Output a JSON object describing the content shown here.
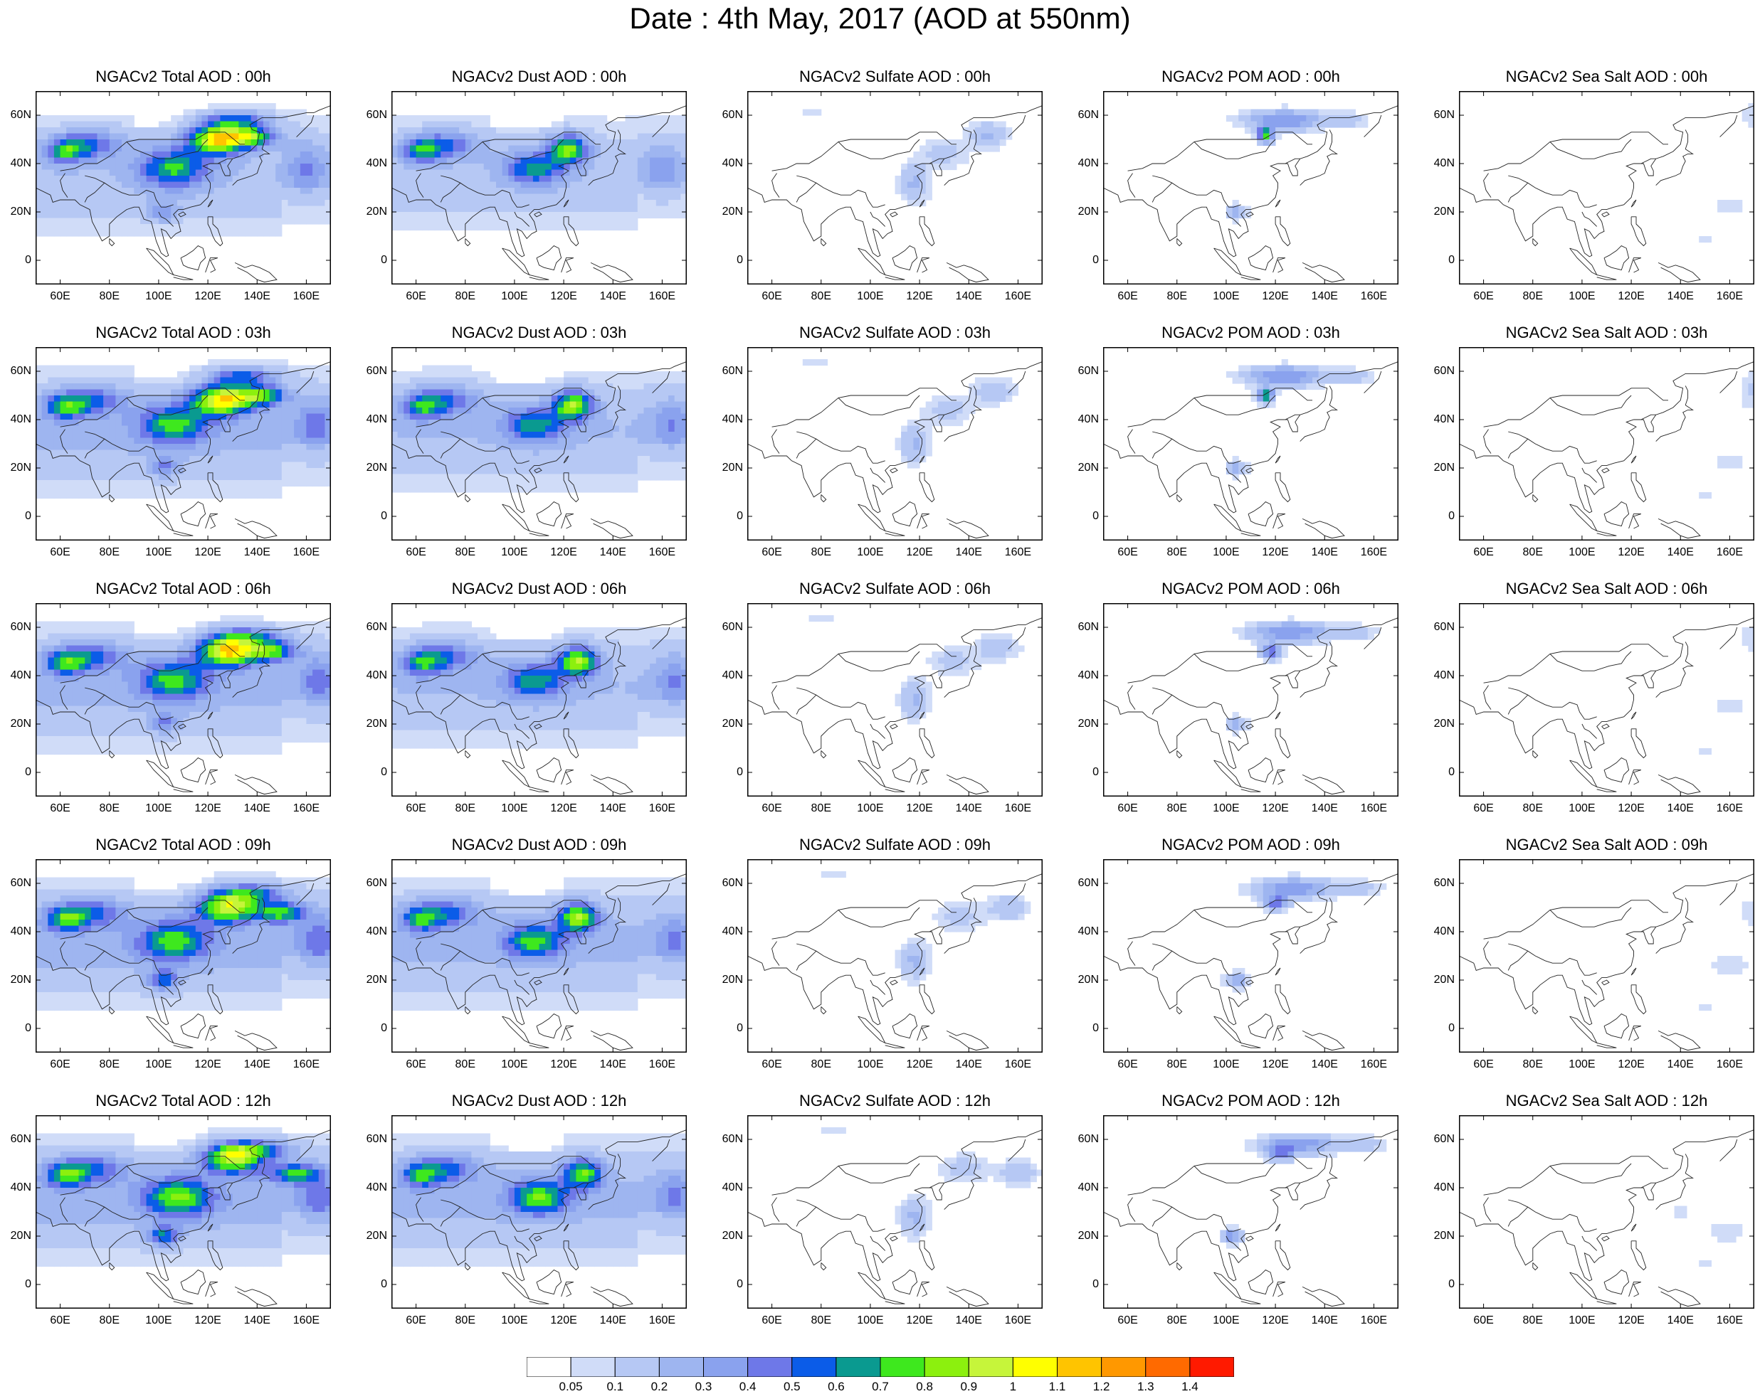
{
  "title": "Date : 4th May, 2017 (AOD at 550nm)",
  "rows": [
    "00h",
    "03h",
    "06h",
    "09h",
    "12h"
  ],
  "columns": [
    {
      "key": "total",
      "titles": [
        "NGACv2 Total AOD : 00h",
        "NGACv2 Total AOD : 03h",
        "NGACv2 Total AOD : 06h",
        "NGACv2 Total AOD : 09h",
        "NGACv2 Total AOD  : 12h"
      ]
    },
    {
      "key": "dust",
      "titles": [
        "NGACv2 Dust AOD : 00h",
        "NGACv2 Dust AOD : 03h",
        "NGACv2 Dust AOD : 06h",
        "NGACv2 Dust AOD : 09h",
        "NGACv2 Dust AOD : 12h"
      ]
    },
    {
      "key": "sulfate",
      "titles": [
        "NGACv2 Sulfate AOD : 00h",
        "NGACv2 Sulfate AOD : 03h",
        "NGACv2 Sulfate AOD : 06h",
        "NGACv2 Sulfate AOD : 09h",
        "NGACv2 Sulfate AOD : 12h"
      ]
    },
    {
      "key": "pom",
      "titles": [
        "NGACv2 POM AOD : 00h",
        "NGACv2 POM AOD : 03h",
        "NGACv2 POM AOD : 06h",
        "NGACv2 POM AOD : 09h",
        "NGACv2 POM  AOD : 12h"
      ]
    },
    {
      "key": "seasalt",
      "titles": [
        "NGACv2 Sea Salt AOD : 00h",
        "NGACv2 Sea Salt AOD : 03h",
        "NGACv2 Sea Salt AOD : 06h",
        "NGACv2 Sea Salt  AOD : 09h",
        "NGACv2 Sea Salt  AOD : 12h"
      ]
    }
  ],
  "map": {
    "lon_range": [
      50,
      170
    ],
    "lat_range": [
      -10,
      70
    ],
    "lon_ticks": [
      {
        "v": 60,
        "t": "60E"
      },
      {
        "v": 80,
        "t": "80E"
      },
      {
        "v": 100,
        "t": "100E"
      },
      {
        "v": 120,
        "t": "120E"
      },
      {
        "v": 140,
        "t": "140E"
      },
      {
        "v": 160,
        "t": "160E"
      }
    ],
    "lat_ticks": [
      {
        "v": 60,
        "t": "60N"
      },
      {
        "v": 40,
        "t": "40N"
      },
      {
        "v": 20,
        "t": "20N"
      },
      {
        "v": 0,
        "t": "0"
      }
    ]
  },
  "colorbar": {
    "labels": [
      "0.05",
      "0.1",
      "0.2",
      "0.3",
      "0.4",
      "0.5",
      "0.6",
      "0.7",
      "0.8",
      "0.9",
      "1",
      "1.1",
      "1.2",
      "1.3",
      "1.4"
    ],
    "colors": [
      "#ffffff",
      "#d0dcf8",
      "#b6c8f4",
      "#9eb5f0",
      "#8aa2ee",
      "#6e78e8",
      "#0b5ce8",
      "#0a9a90",
      "#3ee81e",
      "#8cf00e",
      "#c6f53a",
      "#ffff00",
      "#ffc400",
      "#ff9800",
      "#ff6a00",
      "#ff1a00"
    ]
  },
  "fields": {
    "total": {
      "bg": [
        0.18,
        0.22,
        0.22,
        0.24,
        0.24
      ],
      "blobs": [
        [
          [
            106,
            38,
            14,
            8,
            0.55
          ],
          [
            124,
            50,
            12,
            6,
            0.95
          ],
          [
            138,
            51,
            10,
            4,
            0.6
          ],
          [
            72,
            48,
            14,
            6,
            0.4
          ],
          [
            62,
            45,
            8,
            5,
            0.45
          ],
          [
            132,
            58,
            14,
            4,
            0.45
          ],
          [
            160,
            38,
            8,
            10,
            0.25
          ],
          [
            102,
            20,
            6,
            4,
            0.3
          ]
        ],
        [
          [
            106,
            38,
            14,
            8,
            0.55
          ],
          [
            126,
            48,
            12,
            6,
            0.95
          ],
          [
            142,
            50,
            10,
            4,
            0.6
          ],
          [
            72,
            48,
            14,
            6,
            0.4
          ],
          [
            62,
            45,
            8,
            5,
            0.45
          ],
          [
            134,
            58,
            14,
            4,
            0.45
          ],
          [
            164,
            38,
            8,
            10,
            0.25
          ],
          [
            102,
            20,
            6,
            4,
            0.3
          ]
        ],
        [
          [
            106,
            38,
            14,
            8,
            0.55
          ],
          [
            128,
            50,
            12,
            6,
            0.95
          ],
          [
            146,
            50,
            10,
            4,
            0.6
          ],
          [
            72,
            48,
            14,
            6,
            0.4
          ],
          [
            62,
            45,
            8,
            5,
            0.45
          ],
          [
            136,
            56,
            14,
            4,
            0.45
          ],
          [
            165,
            38,
            8,
            10,
            0.25
          ],
          [
            102,
            20,
            6,
            4,
            0.3
          ]
        ],
        [
          [
            106,
            36,
            14,
            8,
            0.55
          ],
          [
            128,
            50,
            12,
            6,
            0.85
          ],
          [
            150,
            48,
            10,
            4,
            0.6
          ],
          [
            72,
            48,
            14,
            6,
            0.4
          ],
          [
            62,
            45,
            8,
            5,
            0.45
          ],
          [
            138,
            56,
            14,
            4,
            0.45
          ],
          [
            165,
            36,
            8,
            10,
            0.25
          ],
          [
            102,
            20,
            6,
            4,
            0.45
          ]
        ],
        [
          [
            108,
            36,
            14,
            8,
            0.6
          ],
          [
            130,
            52,
            12,
            6,
            0.8
          ],
          [
            155,
            46,
            10,
            4,
            0.55
          ],
          [
            72,
            48,
            14,
            6,
            0.4
          ],
          [
            62,
            45,
            8,
            5,
            0.45
          ],
          [
            140,
            56,
            14,
            4,
            0.45
          ],
          [
            165,
            36,
            8,
            10,
            0.25
          ],
          [
            102,
            20,
            6,
            4,
            0.5
          ]
        ]
      ]
    },
    "dust": {
      "bg": [
        0.16,
        0.2,
        0.2,
        0.22,
        0.22
      ],
      "blobs": [
        [
          [
            108,
            38,
            12,
            7,
            0.5
          ],
          [
            122,
            46,
            8,
            6,
            0.7
          ],
          [
            72,
            48,
            14,
            6,
            0.38
          ],
          [
            62,
            45,
            8,
            5,
            0.42
          ],
          [
            160,
            38,
            8,
            10,
            0.22
          ]
        ],
        [
          [
            108,
            38,
            12,
            7,
            0.5
          ],
          [
            124,
            46,
            8,
            6,
            0.75
          ],
          [
            72,
            48,
            14,
            6,
            0.38
          ],
          [
            62,
            45,
            8,
            5,
            0.42
          ],
          [
            164,
            38,
            8,
            10,
            0.22
          ]
        ],
        [
          [
            108,
            38,
            12,
            7,
            0.5
          ],
          [
            126,
            46,
            8,
            6,
            0.75
          ],
          [
            72,
            48,
            14,
            6,
            0.38
          ],
          [
            62,
            45,
            8,
            5,
            0.42
          ],
          [
            165,
            38,
            8,
            10,
            0.22
          ]
        ],
        [
          [
            108,
            36,
            12,
            7,
            0.55
          ],
          [
            126,
            46,
            8,
            6,
            0.75
          ],
          [
            72,
            48,
            14,
            6,
            0.38
          ],
          [
            62,
            45,
            8,
            5,
            0.42
          ],
          [
            165,
            36,
            8,
            10,
            0.22
          ]
        ],
        [
          [
            110,
            36,
            12,
            7,
            0.6
          ],
          [
            128,
            46,
            8,
            6,
            0.65
          ],
          [
            72,
            48,
            14,
            6,
            0.38
          ],
          [
            62,
            45,
            8,
            5,
            0.42
          ],
          [
            165,
            36,
            8,
            10,
            0.22
          ]
        ]
      ]
    },
    "sulfate": {
      "bg": [
        0.0,
        0.0,
        0.0,
        0.0,
        0.0
      ],
      "blobs": [
        [
          [
            118,
            32,
            6,
            8,
            0.22
          ],
          [
            130,
            44,
            10,
            6,
            0.14
          ],
          [
            148,
            52,
            8,
            5,
            0.22
          ],
          [
            76,
            62,
            6,
            2,
            0.08
          ]
        ],
        [
          [
            118,
            30,
            6,
            8,
            0.22
          ],
          [
            132,
            44,
            10,
            6,
            0.14
          ],
          [
            150,
            52,
            8,
            5,
            0.2
          ],
          [
            78,
            64,
            6,
            2,
            0.09
          ]
        ],
        [
          [
            118,
            30,
            6,
            8,
            0.22
          ],
          [
            134,
            46,
            10,
            6,
            0.14
          ],
          [
            152,
            52,
            8,
            5,
            0.2
          ],
          [
            80,
            64,
            6,
            2,
            0.09
          ]
        ],
        [
          [
            118,
            28,
            6,
            8,
            0.22
          ],
          [
            136,
            46,
            10,
            6,
            0.14
          ],
          [
            156,
            50,
            8,
            5,
            0.2
          ],
          [
            84,
            64,
            6,
            2,
            0.1
          ]
        ],
        [
          [
            118,
            28,
            6,
            8,
            0.22
          ],
          [
            138,
            48,
            10,
            6,
            0.14
          ],
          [
            160,
            46,
            8,
            5,
            0.2
          ],
          [
            86,
            64,
            6,
            2,
            0.1
          ]
        ]
      ]
    },
    "pom": {
      "bg": [
        0.0,
        0.0,
        0.0,
        0.0,
        0.0
      ],
      "blobs": [
        [
          [
            124,
            58,
            16,
            4,
            0.4
          ],
          [
            116,
            52,
            3,
            3,
            0.8
          ],
          [
            104,
            20,
            4,
            3,
            0.28
          ],
          [
            150,
            58,
            8,
            3,
            0.14
          ]
        ],
        [
          [
            124,
            58,
            16,
            4,
            0.4
          ],
          [
            116,
            50,
            3,
            3,
            0.8
          ],
          [
            104,
            20,
            4,
            3,
            0.28
          ],
          [
            152,
            58,
            8,
            3,
            0.14
          ]
        ],
        [
          [
            126,
            58,
            16,
            4,
            0.4
          ],
          [
            118,
            50,
            4,
            3,
            0.55
          ],
          [
            104,
            20,
            4,
            3,
            0.3
          ],
          [
            154,
            58,
            8,
            3,
            0.14
          ]
        ],
        [
          [
            128,
            58,
            16,
            4,
            0.4
          ],
          [
            120,
            52,
            5,
            3,
            0.45
          ],
          [
            104,
            20,
            4,
            3,
            0.35
          ],
          [
            156,
            58,
            8,
            3,
            0.14
          ]
        ],
        [
          [
            130,
            58,
            16,
            4,
            0.38
          ],
          [
            122,
            54,
            5,
            3,
            0.4
          ],
          [
            102,
            20,
            4,
            3,
            0.4
          ],
          [
            158,
            58,
            8,
            3,
            0.14
          ]
        ]
      ]
    },
    "seasalt": {
      "bg": [
        0.0,
        0.0,
        0.0,
        0.0,
        0.0
      ],
      "blobs": [
        [
          [
            160,
            22,
            8,
            4,
            0.08
          ],
          [
            168,
            60,
            3,
            6,
            0.1
          ],
          [
            150,
            8,
            6,
            3,
            0.07
          ]
        ],
        [
          [
            160,
            22,
            8,
            4,
            0.08
          ],
          [
            168,
            52,
            3,
            8,
            0.12
          ],
          [
            150,
            8,
            6,
            3,
            0.07
          ]
        ],
        [
          [
            160,
            28,
            8,
            4,
            0.08
          ],
          [
            168,
            56,
            3,
            6,
            0.1
          ],
          [
            150,
            8,
            6,
            3,
            0.07
          ]
        ],
        [
          [
            160,
            26,
            10,
            6,
            0.08
          ],
          [
            168,
            48,
            3,
            6,
            0.1
          ],
          [
            150,
            8,
            6,
            3,
            0.07
          ]
        ],
        [
          [
            158,
            22,
            10,
            6,
            0.08
          ],
          [
            140,
            30,
            4,
            3,
            0.08
          ],
          [
            150,
            8,
            6,
            3,
            0.07
          ]
        ]
      ]
    }
  }
}
